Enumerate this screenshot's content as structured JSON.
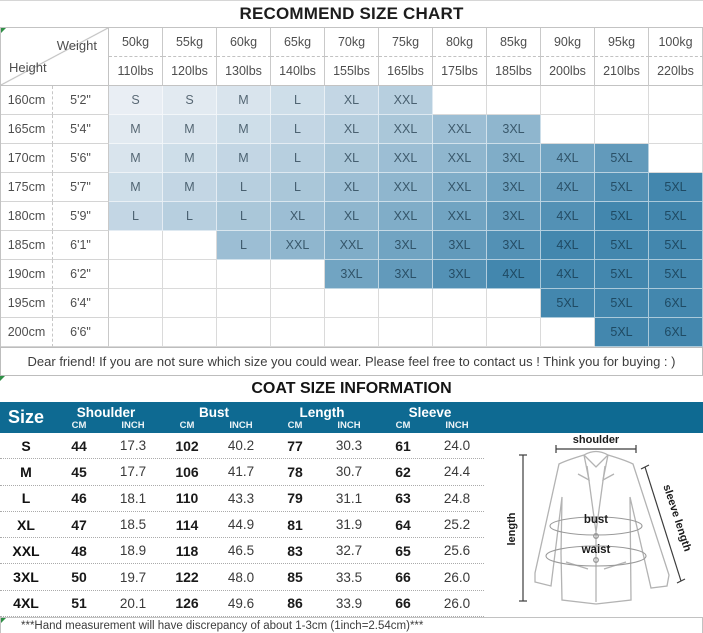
{
  "size_chart": {
    "title": "RECOMMEND SIZE CHART",
    "corner": {
      "weight_label": "Weight",
      "height_label": "Height"
    },
    "weights_kg": [
      "50kg",
      "55kg",
      "60kg",
      "65kg",
      "70kg",
      "75kg",
      "80kg",
      "85kg",
      "90kg",
      "95kg",
      "100kg"
    ],
    "weights_lbs": [
      "110lbs",
      "120lbs",
      "130lbs",
      "140lbs",
      "155lbs",
      "165lbs",
      "175lbs",
      "185lbs",
      "200lbs",
      "210lbs",
      "220lbs"
    ],
    "rows": [
      {
        "cm": "160cm",
        "ft": "5'2\"",
        "sizes": [
          "S",
          "S",
          "M",
          "L",
          "XL",
          "XXL",
          "",
          "",
          "",
          "",
          ""
        ]
      },
      {
        "cm": "165cm",
        "ft": "5'4\"",
        "sizes": [
          "M",
          "M",
          "M",
          "L",
          "XL",
          "XXL",
          "XXL",
          "3XL",
          "",
          "",
          ""
        ]
      },
      {
        "cm": "170cm",
        "ft": "5'6\"",
        "sizes": [
          "M",
          "M",
          "M",
          "L",
          "XL",
          "XXL",
          "XXL",
          "3XL",
          "4XL",
          "5XL",
          ""
        ]
      },
      {
        "cm": "175cm",
        "ft": "5'7\"",
        "sizes": [
          "M",
          "M",
          "L",
          "L",
          "XL",
          "XXL",
          "XXL",
          "3XL",
          "4XL",
          "5XL",
          "5XL"
        ]
      },
      {
        "cm": "180cm",
        "ft": "5'9\"",
        "sizes": [
          "L",
          "L",
          "L",
          "XL",
          "XL",
          "XXL",
          "XXL",
          "3XL",
          "4XL",
          "5XL",
          "5XL"
        ]
      },
      {
        "cm": "185cm",
        "ft": "6'1\"",
        "sizes": [
          "",
          "",
          "L",
          "XXL",
          "XXL",
          "3XL",
          "3XL",
          "3XL",
          "4XL",
          "5XL",
          "5XL"
        ]
      },
      {
        "cm": "190cm",
        "ft": "6'2\"",
        "sizes": [
          "",
          "",
          "",
          "",
          "3XL",
          "3XL",
          "3XL",
          "4XL",
          "4XL",
          "5XL",
          "5XL"
        ]
      },
      {
        "cm": "195cm",
        "ft": "6'4\"",
        "sizes": [
          "",
          "",
          "",
          "",
          "",
          "",
          "",
          "",
          "5XL",
          "5XL",
          "6XL"
        ]
      },
      {
        "cm": "200cm",
        "ft": "6'6\"",
        "sizes": [
          "",
          "",
          "",
          "",
          "",
          "",
          "",
          "",
          "",
          "5XL",
          "6XL"
        ]
      }
    ],
    "colors": {
      "cell_light": "#e9eef4",
      "cell_dark": "#4387ae",
      "text_light": "#5b6a76",
      "text_dark": "#1f4a63"
    }
  },
  "note": "Dear friend! If you are not sure which size you could wear. Please feel free to contact us ! Think you for buying  : )",
  "coat": {
    "title": "COAT SIZE INFORMATION",
    "size_header": "Size",
    "groups": [
      "Shoulder",
      "Bust",
      "Length",
      "Sleeve"
    ],
    "unit_cm": "CM",
    "unit_inch": "INCH",
    "header_bg": "#0e6a92",
    "rows": [
      {
        "size": "S",
        "values": [
          "44",
          "17.3",
          "102",
          "40.2",
          "77",
          "30.3",
          "61",
          "24.0"
        ]
      },
      {
        "size": "M",
        "values": [
          "45",
          "17.7",
          "106",
          "41.7",
          "78",
          "30.7",
          "62",
          "24.4"
        ]
      },
      {
        "size": "L",
        "values": [
          "46",
          "18.1",
          "110",
          "43.3",
          "79",
          "31.1",
          "63",
          "24.8"
        ]
      },
      {
        "size": "XL",
        "values": [
          "47",
          "18.5",
          "114",
          "44.9",
          "81",
          "31.9",
          "64",
          "25.2"
        ]
      },
      {
        "size": "XXL",
        "values": [
          "48",
          "18.9",
          "118",
          "46.5",
          "83",
          "32.7",
          "65",
          "25.6"
        ]
      },
      {
        "size": "3XL",
        "values": [
          "50",
          "19.7",
          "122",
          "48.0",
          "85",
          "33.5",
          "66",
          "26.0"
        ]
      },
      {
        "size": "4XL",
        "values": [
          "51",
          "20.1",
          "126",
          "49.6",
          "86",
          "33.9",
          "66",
          "26.0"
        ]
      }
    ],
    "footnote": "***Hand measurement will have discrepancy of about 1-3cm (1inch=2.54cm)***"
  },
  "diagram": {
    "labels": {
      "shoulder": "shoulder",
      "length": "length",
      "bust": "bust",
      "waist": "waist",
      "sleeve": "sleeve length"
    }
  }
}
